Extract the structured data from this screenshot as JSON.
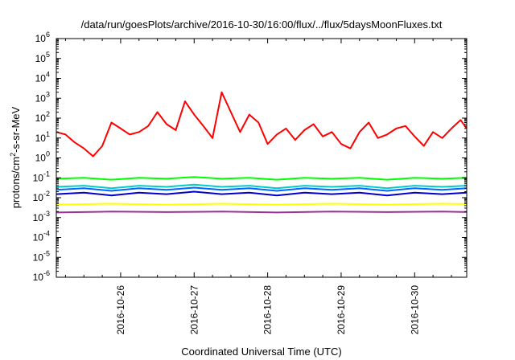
{
  "chart_data": {
    "type": "line",
    "title": "/data/run/goesPlots/archive/2016-10-30/16:00/flux/../flux/5daysMoonFluxes.txt",
    "xlabel": "Coordinated Universal Time (UTC)",
    "ylabel": "protons/cm2-s-sr-MeV",
    "ylabel_parts": {
      "pre": "protons/cm",
      "sup": "2",
      "post": "-s-sr-MeV"
    },
    "y_scale": "log",
    "ylim": [
      1e-06,
      1000000.0
    ],
    "y_ticks": [
      {
        "value": 1e-06,
        "base": "10",
        "exp": "-6"
      },
      {
        "value": 1e-05,
        "base": "10",
        "exp": "-5"
      },
      {
        "value": 0.0001,
        "base": "10",
        "exp": "-4"
      },
      {
        "value": 0.001,
        "base": "10",
        "exp": "-3"
      },
      {
        "value": 0.01,
        "base": "10",
        "exp": "-2"
      },
      {
        "value": 0.1,
        "base": "10",
        "exp": "-1"
      },
      {
        "value": 1,
        "base": "10",
        "exp": "0"
      },
      {
        "value": 10,
        "base": "10",
        "exp": "1"
      },
      {
        "value": 100,
        "base": "10",
        "exp": "2"
      },
      {
        "value": 1000,
        "base": "10",
        "exp": "3"
      },
      {
        "value": 10000,
        "base": "10",
        "exp": "4"
      },
      {
        "value": 100000,
        "base": "10",
        "exp": "5"
      },
      {
        "value": 1000000,
        "base": "10",
        "exp": "6"
      }
    ],
    "xlim": [
      "2016-10-25T03:00",
      "2016-10-30T17:00"
    ],
    "x_ticks": [
      "2016-10-26",
      "2016-10-27",
      "2016-10-28",
      "2016-10-29",
      "2016-10-30"
    ],
    "grid": false,
    "legend": "none",
    "series": [
      {
        "color": "#ff0000",
        "x": [
          "2016-10-25T03:00",
          "2016-10-25T06:00",
          "2016-10-25T09:00",
          "2016-10-25T12:00",
          "2016-10-25T15:00",
          "2016-10-25T18:00",
          "2016-10-25T21:00",
          "2016-10-26T00:00",
          "2016-10-26T03:00",
          "2016-10-26T06:00",
          "2016-10-26T09:00",
          "2016-10-26T12:00",
          "2016-10-26T15:00",
          "2016-10-26T18:00",
          "2016-10-26T21:00",
          "2016-10-27T00:00",
          "2016-10-27T03:00",
          "2016-10-27T06:00",
          "2016-10-27T09:00",
          "2016-10-27T12:00",
          "2016-10-27T15:00",
          "2016-10-27T18:00",
          "2016-10-27T21:00",
          "2016-10-28T00:00",
          "2016-10-28T03:00",
          "2016-10-28T06:00",
          "2016-10-28T09:00",
          "2016-10-28T12:00",
          "2016-10-28T15:00",
          "2016-10-28T18:00",
          "2016-10-28T21:00",
          "2016-10-29T00:00",
          "2016-10-29T03:00",
          "2016-10-29T06:00",
          "2016-10-29T09:00",
          "2016-10-29T12:00",
          "2016-10-29T15:00",
          "2016-10-29T18:00",
          "2016-10-29T21:00",
          "2016-10-30T00:00",
          "2016-10-30T03:00",
          "2016-10-30T06:00",
          "2016-10-30T09:00",
          "2016-10-30T12:00",
          "2016-10-30T15:00",
          "2016-10-30T17:00"
        ],
        "values": [
          20,
          15,
          6,
          3,
          1.2,
          4,
          60,
          30,
          15,
          20,
          40,
          200,
          50,
          25,
          700,
          150,
          40,
          10,
          2000,
          200,
          20,
          150,
          60,
          5,
          15,
          30,
          8,
          25,
          50,
          12,
          20,
          5,
          3,
          20,
          60,
          10,
          15,
          30,
          40,
          12,
          4,
          20,
          10,
          30,
          80,
          30
        ]
      },
      {
        "color": "#00ff00",
        "x": [
          "2016-10-25T03:00",
          "2016-10-25T12:00",
          "2016-10-25T21:00",
          "2016-10-26T06:00",
          "2016-10-26T15:00",
          "2016-10-27T00:00",
          "2016-10-27T09:00",
          "2016-10-27T18:00",
          "2016-10-28T03:00",
          "2016-10-28T12:00",
          "2016-10-28T21:00",
          "2016-10-29T06:00",
          "2016-10-29T15:00",
          "2016-10-30T00:00",
          "2016-10-30T09:00",
          "2016-10-30T17:00"
        ],
        "values": [
          0.09,
          0.1,
          0.08,
          0.1,
          0.09,
          0.11,
          0.09,
          0.1,
          0.08,
          0.1,
          0.09,
          0.1,
          0.08,
          0.1,
          0.09,
          0.1
        ]
      },
      {
        "color": "#00cccc",
        "x": [
          "2016-10-25T03:00",
          "2016-10-25T12:00",
          "2016-10-25T21:00",
          "2016-10-26T06:00",
          "2016-10-26T15:00",
          "2016-10-27T00:00",
          "2016-10-27T09:00",
          "2016-10-27T18:00",
          "2016-10-28T03:00",
          "2016-10-28T12:00",
          "2016-10-28T21:00",
          "2016-10-29T06:00",
          "2016-10-29T15:00",
          "2016-10-30T00:00",
          "2016-10-30T09:00",
          "2016-10-30T17:00"
        ],
        "values": [
          0.035,
          0.04,
          0.03,
          0.04,
          0.035,
          0.045,
          0.035,
          0.04,
          0.03,
          0.04,
          0.035,
          0.04,
          0.03,
          0.04,
          0.035,
          0.04
        ]
      },
      {
        "color": "#0066ff",
        "x": [
          "2016-10-25T03:00",
          "2016-10-25T12:00",
          "2016-10-25T21:00",
          "2016-10-26T06:00",
          "2016-10-26T15:00",
          "2016-10-27T00:00",
          "2016-10-27T09:00",
          "2016-10-27T18:00",
          "2016-10-28T03:00",
          "2016-10-28T12:00",
          "2016-10-28T21:00",
          "2016-10-29T06:00",
          "2016-10-29T15:00",
          "2016-10-30T00:00",
          "2016-10-30T09:00",
          "2016-10-30T17:00"
        ],
        "values": [
          0.025,
          0.03,
          0.022,
          0.03,
          0.025,
          0.032,
          0.025,
          0.03,
          0.022,
          0.03,
          0.025,
          0.03,
          0.022,
          0.03,
          0.025,
          0.03
        ]
      },
      {
        "color": "#0000cc",
        "x": [
          "2016-10-25T03:00",
          "2016-10-25T12:00",
          "2016-10-25T21:00",
          "2016-10-26T06:00",
          "2016-10-26T15:00",
          "2016-10-27T00:00",
          "2016-10-27T09:00",
          "2016-10-27T18:00",
          "2016-10-28T03:00",
          "2016-10-28T12:00",
          "2016-10-28T21:00",
          "2016-10-29T06:00",
          "2016-10-29T15:00",
          "2016-10-30T00:00",
          "2016-10-30T09:00",
          "2016-10-30T17:00"
        ],
        "values": [
          0.015,
          0.018,
          0.013,
          0.018,
          0.015,
          0.02,
          0.015,
          0.018,
          0.013,
          0.018,
          0.015,
          0.018,
          0.013,
          0.018,
          0.015,
          0.018
        ]
      },
      {
        "color": "#ffff00",
        "x": [
          "2016-10-25T03:00",
          "2016-10-25T21:00",
          "2016-10-26T15:00",
          "2016-10-27T09:00",
          "2016-10-28T03:00",
          "2016-10-28T21:00",
          "2016-10-29T15:00",
          "2016-10-30T09:00",
          "2016-10-30T17:00"
        ],
        "values": [
          0.0045,
          0.005,
          0.0045,
          0.005,
          0.0045,
          0.005,
          0.0045,
          0.005,
          0.0048
        ]
      },
      {
        "color": "#993399",
        "x": [
          "2016-10-25T03:00",
          "2016-10-25T21:00",
          "2016-10-26T15:00",
          "2016-10-27T09:00",
          "2016-10-28T03:00",
          "2016-10-28T21:00",
          "2016-10-29T15:00",
          "2016-10-30T09:00",
          "2016-10-30T17:00"
        ],
        "values": [
          0.0018,
          0.002,
          0.0019,
          0.002,
          0.0018,
          0.002,
          0.0019,
          0.002,
          0.0019
        ]
      }
    ]
  }
}
